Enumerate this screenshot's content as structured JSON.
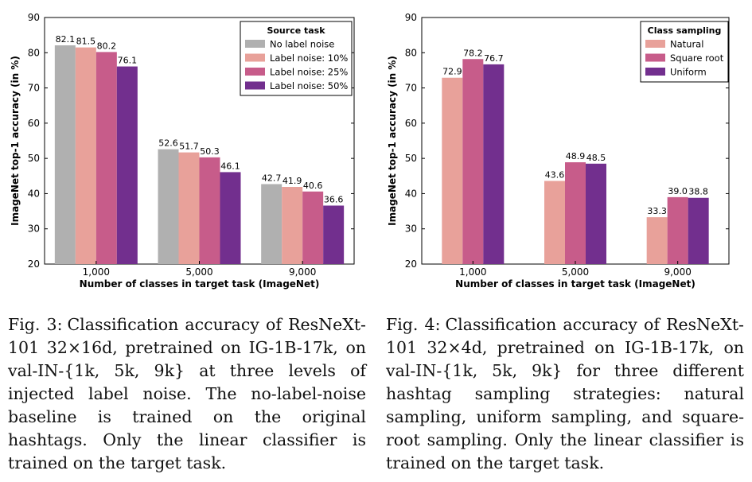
{
  "colors": {
    "gray": "#b0b0b0",
    "pink": "#e8a19a",
    "rose": "#c75c8a",
    "purple": "#722f8e"
  },
  "figures": [
    {
      "caption_label": "Fig. 3:",
      "caption_text": "Classification accuracy of ResNeXt-101 32×16d, pretrained on IG-1B-17k, on val-IN-{1k, 5k, 9k} at three levels of injected label noise. The no-label-noise baseline is trained on the original hashtags. Only the linear classifier is trained on the target task.",
      "chart_data": {
        "type": "bar",
        "xlabel": "Number of classes in target task (ImageNet)",
        "ylabel": "ImageNet top-1 accuracy (in %)",
        "ylim": [
          20,
          90
        ],
        "yticks": [
          "20",
          "30",
          "40",
          "50",
          "60",
          "70",
          "80",
          "90"
        ],
        "categories": [
          "1,000",
          "5,000",
          "9,000"
        ],
        "legend_title": "Source task",
        "legend_position": "top-right",
        "series": [
          {
            "name": "No label noise",
            "color": "#b0b0b0",
            "values": [
              82.1,
              52.6,
              42.7
            ],
            "labels": [
              "82.1",
              "52.6",
              "42.7"
            ]
          },
          {
            "name": "Label noise: 10%",
            "color": "#e8a19a",
            "values": [
              81.5,
              51.7,
              41.9
            ],
            "labels": [
              "81.5",
              "51.7",
              "41.9"
            ]
          },
          {
            "name": "Label noise: 25%",
            "color": "#c75c8a",
            "values": [
              80.2,
              50.3,
              40.6
            ],
            "labels": [
              "80.2",
              "50.3",
              "40.6"
            ]
          },
          {
            "name": "Label noise: 50%",
            "color": "#722f8e",
            "values": [
              76.1,
              46.1,
              36.6
            ],
            "labels": [
              "76.1",
              "46.1",
              "36.6"
            ]
          }
        ]
      }
    },
    {
      "caption_label": "Fig. 4:",
      "caption_text": "Classification accuracy of ResNeXt-101 32×4d, pretrained on IG-1B-17k, on val-IN-{1k, 5k, 9k} for three different hashtag sampling strategies: natural sampling, uniform sampling, and square-root sampling. Only the linear classifier is trained on the target task.",
      "chart_data": {
        "type": "bar",
        "xlabel": "Number of classes in target task (ImageNet)",
        "ylabel": "ImageNet top-1 accuracy (in %)",
        "ylim": [
          20,
          90
        ],
        "yticks": [
          "20",
          "30",
          "40",
          "50",
          "60",
          "70",
          "80",
          "90"
        ],
        "categories": [
          "1,000",
          "5,000",
          "9,000"
        ],
        "legend_title": "Class sampling",
        "legend_position": "top-right",
        "series": [
          {
            "name": "Natural",
            "color": "#e8a19a",
            "values": [
              72.9,
              43.6,
              33.3
            ],
            "labels": [
              "72.9",
              "43.6",
              "33.3"
            ]
          },
          {
            "name": "Square root",
            "color": "#c75c8a",
            "values": [
              78.2,
              48.9,
              39.0
            ],
            "labels": [
              "78.2",
              "48.9",
              "39.0"
            ]
          },
          {
            "name": "Uniform",
            "color": "#722f8e",
            "values": [
              76.7,
              48.5,
              38.8
            ],
            "labels": [
              "76.7",
              "48.5",
              "38.8"
            ]
          }
        ]
      }
    }
  ]
}
